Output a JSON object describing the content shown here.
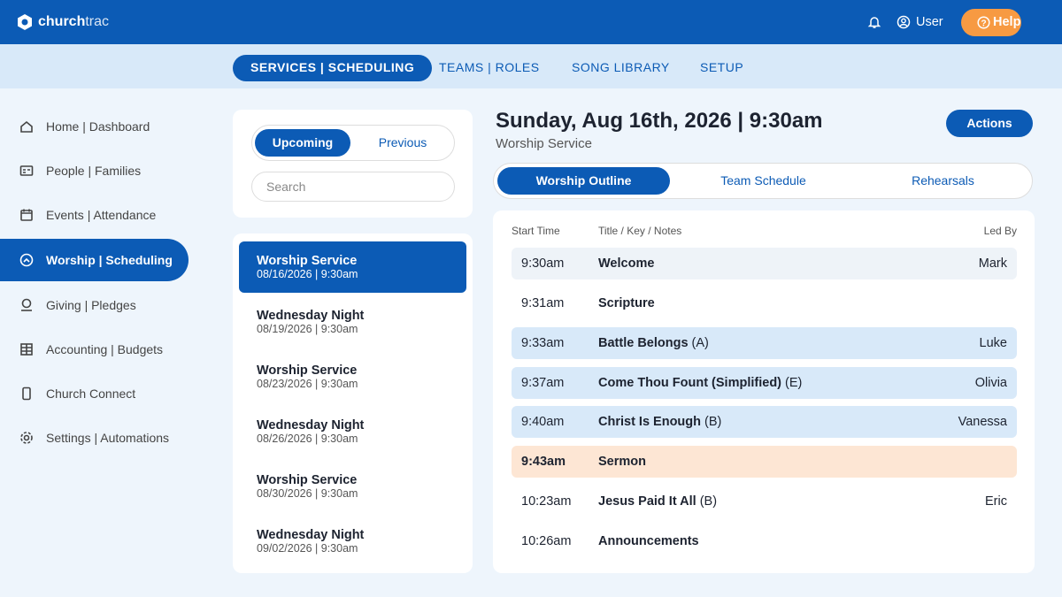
{
  "header": {
    "brand": [
      "church",
      "trac"
    ],
    "user": "User",
    "help": "Help"
  },
  "top_nav": [
    "SERVICES | SCHEDULING",
    "TEAMS | ROLES",
    "SONG LIBRARY",
    "SETUP"
  ],
  "sidebar": [
    "Home | Dashboard",
    "People | Families",
    "Events | Attendance",
    "Worship | Scheduling",
    "Giving | Pledges",
    "Accounting | Budgets",
    "Church Connect",
    "Settings | Automations"
  ],
  "services_panel": {
    "tabs": [
      "Upcoming",
      "Previous"
    ],
    "search": "Search",
    "items": [
      {
        "title": "Worship Service",
        "date": "08/16/2026 | 9:30am"
      },
      {
        "title": "Wednesday Night",
        "date": "08/19/2026 | 9:30am"
      },
      {
        "title": "Worship Service",
        "date": "08/23/2026 | 9:30am"
      },
      {
        "title": "Wednesday Night",
        "date": "08/26/2026 | 9:30am"
      },
      {
        "title": "Worship Service",
        "date": "08/30/2026 | 9:30am"
      },
      {
        "title": "Wednesday Night",
        "date": "09/02/2026 | 9:30am"
      }
    ]
  },
  "service": {
    "title": "Sunday, Aug 16th, 2026 | 9:30am",
    "subtitle": "Worship Service",
    "actions": "Actions",
    "tabs": [
      "Worship Outline",
      "Team Schedule",
      "Rehearsals"
    ],
    "columns": [
      "Start Time",
      "Title / Key / Notes",
      "Led By"
    ],
    "rows": [
      {
        "time": "9:30am",
        "title": "Welcome",
        "led": "Mark"
      },
      {
        "time": "9:31am",
        "title": "Scripture"
      },
      {
        "time": "9:33am",
        "title": "Battle Belongs",
        "key": "(A)",
        "led": "Luke"
      },
      {
        "time": "9:37am",
        "title": "Come Thou Fount (Simplified)",
        "key": "(E)",
        "led": "Olivia"
      },
      {
        "time": "9:40am",
        "title": "Christ Is Enough",
        "key": "(B)",
        "led": "Vanessa"
      },
      {
        "time": "9:43am",
        "title": "Sermon"
      },
      {
        "time": "10:23am",
        "title": "Jesus Paid It All",
        "key": "(B)",
        "led": "Eric"
      },
      {
        "time": "10:26am",
        "title": "Announcements"
      }
    ]
  }
}
